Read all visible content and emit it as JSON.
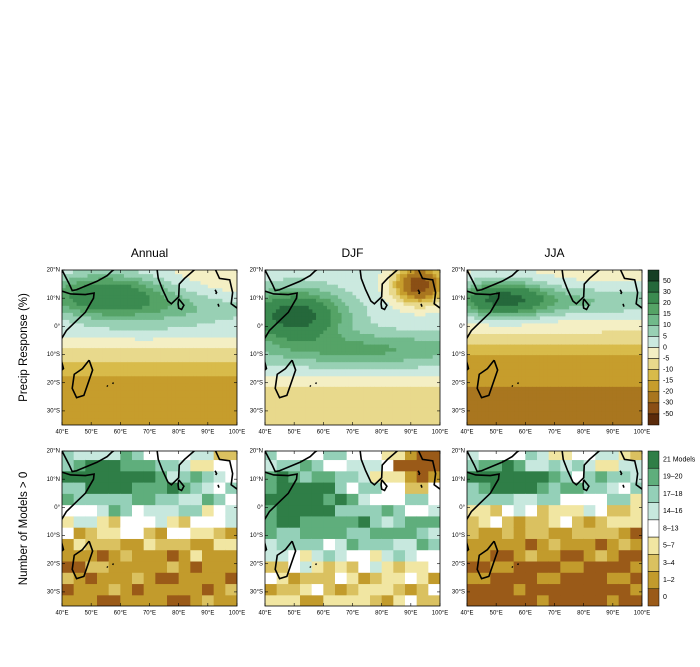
{
  "titles": [
    "Annual",
    "DJF",
    "JJA"
  ],
  "rows": [
    {
      "label": "Precip Response (%)",
      "colorbar": {
        "colors": [
          "#163f24",
          "#25683b",
          "#3b8b50",
          "#55a366",
          "#70b98a",
          "#98d0b4",
          "#cbe9df",
          "#f4efc4",
          "#e8d98c",
          "#d8bb4a",
          "#c69d2c",
          "#a9761f",
          "#8a4f15",
          "#5b2b0b"
        ],
        "labels": [
          50,
          30,
          20,
          15,
          10,
          5,
          0,
          -5,
          -10,
          -15,
          -20,
          -30,
          -50
        ]
      }
    },
    {
      "label": "Number of Models > 0",
      "colorbar": {
        "colors": [
          "#2f7e47",
          "#5fae7c",
          "#94d0b8",
          "#c7e8de",
          "#ffffff",
          "#f1e6a2",
          "#dac160",
          "#c29b2c",
          "#9a5a18"
        ],
        "labels": [
          "21 Models",
          "19–20",
          "17–18",
          "14–16",
          "8–13",
          "5–7",
          "3–4",
          "1–2",
          0
        ]
      }
    }
  ],
  "lon": {
    "range": [
      40,
      100
    ],
    "ticks": [
      {
        "value": 40,
        "label": "40°E"
      },
      {
        "value": 50,
        "label": "50°E"
      },
      {
        "value": 60,
        "label": "60°E"
      },
      {
        "value": 70,
        "label": "70°E"
      },
      {
        "value": 80,
        "label": "80°E"
      },
      {
        "value": 90,
        "label": "90°E"
      },
      {
        "value": 100,
        "label": "100°E"
      }
    ]
  },
  "lat": {
    "range": [
      -35,
      20
    ],
    "ticks": [
      {
        "value": 20,
        "label": "20°N"
      },
      {
        "value": 10,
        "label": "10°N"
      },
      {
        "value": 0,
        "label": "0°"
      },
      {
        "value": -10,
        "label": "10°S"
      },
      {
        "value": -20,
        "label": "20°S"
      },
      {
        "value": -30,
        "label": "30°S"
      }
    ]
  }
}
